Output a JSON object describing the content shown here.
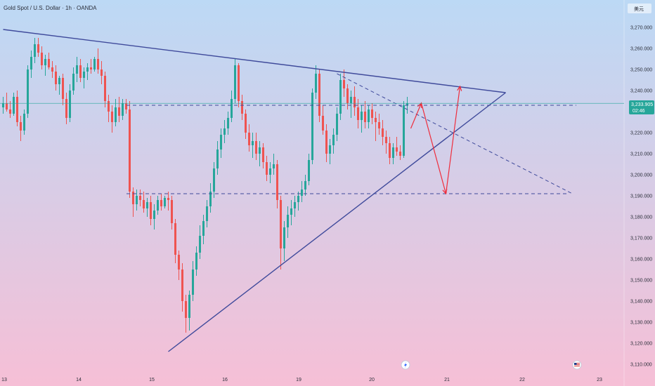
{
  "symbol_title": "Gold Spot / U.S. Dollar · 1h · OANDA",
  "currency_unit": "美元",
  "colors": {
    "bull": "#26a69a",
    "bear": "#ef5350",
    "trendline": "#3f4a9b",
    "projection": "#ef2d3c",
    "price_tag": "#26a69a",
    "bg_top": "#bcd9f5",
    "bg_bottom": "#f6bfd6"
  },
  "icons": [
    "lightning-icon",
    "us-flag-icon"
  ],
  "chart_data": {
    "type": "candlestick",
    "timeframe": "1h",
    "ylim": [
      3106,
      3282
    ],
    "y_ticks": [
      "3,110.000",
      "3,120.000",
      "3,130.000",
      "3,140.000",
      "3,150.000",
      "3,160.000",
      "3,170.000",
      "3,180.000",
      "3,190.000",
      "3,200.000",
      "3,210.000",
      "3,220.000",
      "3,230.000",
      "3,240.000",
      "3,250.000",
      "3,260.000",
      "3,270.000"
    ],
    "x_ticks": [
      "13",
      "14",
      "15",
      "16",
      "19",
      "20",
      "21",
      "22",
      "23"
    ],
    "last_price": "3,233.905",
    "countdown": "02:46",
    "candles": [
      [
        3232,
        3237,
        3229,
        3234
      ],
      [
        3234,
        3239,
        3230,
        3231
      ],
      [
        3231,
        3235,
        3227,
        3229
      ],
      [
        3229,
        3239,
        3228,
        3237
      ],
      [
        3237,
        3240,
        3223,
        3225
      ],
      [
        3225,
        3228,
        3216,
        3221
      ],
      [
        3221,
        3231,
        3219,
        3229
      ],
      [
        3229,
        3252,
        3227,
        3250
      ],
      [
        3250,
        3259,
        3246,
        3256
      ],
      [
        3256,
        3265,
        3253,
        3262
      ],
      [
        3262,
        3265,
        3256,
        3258
      ],
      [
        3258,
        3261,
        3250,
        3252
      ],
      [
        3252,
        3257,
        3247,
        3255
      ],
      [
        3255,
        3258,
        3250,
        3251
      ],
      [
        3251,
        3254,
        3246,
        3249
      ],
      [
        3249,
        3252,
        3240,
        3243
      ],
      [
        3243,
        3247,
        3238,
        3246
      ],
      [
        3246,
        3248,
        3233,
        3236
      ],
      [
        3236,
        3239,
        3224,
        3227
      ],
      [
        3227,
        3243,
        3225,
        3240
      ],
      [
        3240,
        3251,
        3238,
        3248
      ],
      [
        3248,
        3256,
        3244,
        3252
      ],
      [
        3252,
        3255,
        3244,
        3246
      ],
      [
        3246,
        3251,
        3241,
        3249
      ],
      [
        3249,
        3253,
        3245,
        3251
      ],
      [
        3251,
        3255,
        3248,
        3250
      ],
      [
        3250,
        3256,
        3249,
        3255
      ],
      [
        3255,
        3260,
        3248,
        3250
      ],
      [
        3250,
        3254,
        3243,
        3247
      ],
      [
        3247,
        3249,
        3232,
        3235
      ],
      [
        3235,
        3238,
        3225,
        3230
      ],
      [
        3230,
        3233,
        3220,
        3225
      ],
      [
        3225,
        3236,
        3223,
        3232
      ],
      [
        3232,
        3237,
        3225,
        3228
      ],
      [
        3228,
        3236,
        3226,
        3234
      ],
      [
        3234,
        3236,
        3229,
        3231
      ],
      [
        3231,
        3235,
        3189,
        3192
      ],
      [
        3192,
        3194,
        3180,
        3186
      ],
      [
        3186,
        3193,
        3183,
        3190
      ],
      [
        3190,
        3193,
        3185,
        3188
      ],
      [
        3188,
        3192,
        3182,
        3184
      ],
      [
        3184,
        3189,
        3180,
        3187
      ],
      [
        3187,
        3190,
        3176,
        3179
      ],
      [
        3179,
        3186,
        3174,
        3183
      ],
      [
        3183,
        3190,
        3181,
        3188
      ],
      [
        3188,
        3191,
        3183,
        3185
      ],
      [
        3185,
        3190,
        3184,
        3189
      ],
      [
        3189,
        3192,
        3183,
        3188
      ],
      [
        3188,
        3190,
        3174,
        3177
      ],
      [
        3177,
        3179,
        3158,
        3162
      ],
      [
        3162,
        3164,
        3150,
        3155
      ],
      [
        3155,
        3158,
        3135,
        3140
      ],
      [
        3140,
        3143,
        3125,
        3132
      ],
      [
        3132,
        3145,
        3126,
        3143
      ],
      [
        3143,
        3159,
        3140,
        3155
      ],
      [
        3155,
        3166,
        3152,
        3163
      ],
      [
        3163,
        3176,
        3160,
        3171
      ],
      [
        3171,
        3181,
        3167,
        3178
      ],
      [
        3178,
        3188,
        3175,
        3185
      ],
      [
        3185,
        3196,
        3182,
        3192
      ],
      [
        3192,
        3206,
        3189,
        3203
      ],
      [
        3203,
        3216,
        3200,
        3212
      ],
      [
        3212,
        3222,
        3208,
        3219
      ],
      [
        3219,
        3226,
        3215,
        3222
      ],
      [
        3222,
        3230,
        3219,
        3227
      ],
      [
        3227,
        3240,
        3225,
        3236
      ],
      [
        3236,
        3255,
        3234,
        3252
      ],
      [
        3252,
        3253,
        3232,
        3235
      ],
      [
        3235,
        3238,
        3226,
        3229
      ],
      [
        3229,
        3231,
        3217,
        3220
      ],
      [
        3220,
        3224,
        3211,
        3214
      ],
      [
        3214,
        3220,
        3208,
        3216
      ],
      [
        3216,
        3220,
        3207,
        3210
      ],
      [
        3210,
        3216,
        3204,
        3213
      ],
      [
        3213,
        3215,
        3203,
        3206
      ],
      [
        3206,
        3209,
        3197,
        3200
      ],
      [
        3200,
        3206,
        3196,
        3203
      ],
      [
        3203,
        3210,
        3200,
        3205
      ],
      [
        3205,
        3207,
        3184,
        3188
      ],
      [
        3188,
        3190,
        3155,
        3165
      ],
      [
        3165,
        3178,
        3159,
        3175
      ],
      [
        3175,
        3185,
        3170,
        3181
      ],
      [
        3181,
        3188,
        3176,
        3184
      ],
      [
        3184,
        3190,
        3180,
        3187
      ],
      [
        3187,
        3192,
        3183,
        3190
      ],
      [
        3190,
        3197,
        3187,
        3193
      ],
      [
        3193,
        3200,
        3190,
        3197
      ],
      [
        3197,
        3210,
        3195,
        3207
      ],
      [
        3207,
        3241,
        3205,
        3239
      ],
      [
        3239,
        3252,
        3236,
        3248
      ],
      [
        3248,
        3250,
        3225,
        3228
      ],
      [
        3228,
        3233,
        3219,
        3221
      ],
      [
        3221,
        3224,
        3206,
        3210
      ],
      [
        3210,
        3217,
        3205,
        3214
      ],
      [
        3214,
        3222,
        3210,
        3219
      ],
      [
        3219,
        3232,
        3216,
        3229
      ],
      [
        3229,
        3248,
        3226,
        3245
      ],
      [
        3245,
        3250,
        3237,
        3241
      ],
      [
        3241,
        3243,
        3231,
        3234
      ],
      [
        3234,
        3240,
        3227,
        3237
      ],
      [
        3237,
        3242,
        3228,
        3232
      ],
      [
        3232,
        3236,
        3222,
        3226
      ],
      [
        3226,
        3233,
        3220,
        3230
      ],
      [
        3230,
        3235,
        3222,
        3225
      ],
      [
        3225,
        3233,
        3222,
        3231
      ],
      [
        3231,
        3234,
        3224,
        3227
      ],
      [
        3227,
        3230,
        3216,
        3225
      ],
      [
        3225,
        3229,
        3219,
        3222
      ],
      [
        3222,
        3226,
        3214,
        3218
      ],
      [
        3218,
        3221,
        3210,
        3215
      ],
      [
        3215,
        3218,
        3205,
        3208
      ],
      [
        3208,
        3215,
        3205,
        3213
      ],
      [
        3213,
        3218,
        3209,
        3211
      ],
      [
        3211,
        3214,
        3207,
        3209
      ],
      [
        3209,
        3235,
        3208,
        3233
      ],
      [
        3233,
        3237,
        3229,
        3234
      ]
    ],
    "annotations": {
      "resistance_trendline": [
        [
          0,
          3269
        ],
        [
          143,
          3239
        ]
      ],
      "support_trendline": [
        [
          47,
          3116
        ],
        [
          143,
          3239
        ]
      ],
      "dashed_descending_line": [
        [
          95,
          3248
        ],
        [
          162,
          3191
        ]
      ],
      "dashed_horizontal_levels": [
        3233,
        3191
      ],
      "projection_path": [
        [
          116,
          3222
        ],
        [
          119,
          3234
        ],
        [
          126,
          3191
        ],
        [
          130,
          3242
        ]
      ]
    }
  }
}
